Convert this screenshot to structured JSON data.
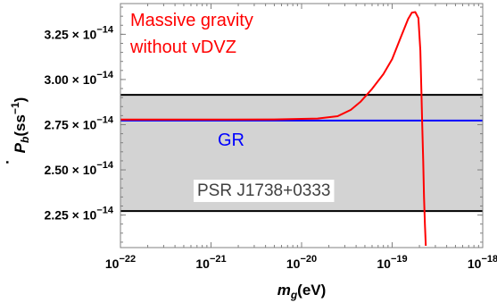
{
  "chart_data": {
    "type": "line",
    "xlabel": {
      "base": "m",
      "sub": "g",
      "rest": "(eV)"
    },
    "ylabel": {
      "base": "P",
      "sub": "b",
      "rest": "(ss",
      "sup": "−1",
      "close": ")"
    },
    "xscale": "log",
    "xlim": [
      1e-22,
      1e-18
    ],
    "ylim": [
      2.07e-14,
      3.42e-14
    ],
    "x_ticks": [
      {
        "value": 1e-22,
        "mant": "10",
        "exp": "−22"
      },
      {
        "value": 1e-21,
        "mant": "10",
        "exp": "−21"
      },
      {
        "value": 1e-20,
        "mant": "10",
        "exp": "−20"
      },
      {
        "value": 1e-19,
        "mant": "10",
        "exp": "−19"
      },
      {
        "value": 1e-18,
        "mant": "10",
        "exp": "−18"
      }
    ],
    "y_ticks": [
      {
        "value": 2.25e-14,
        "mant": "2.25 × 10",
        "exp": "−14"
      },
      {
        "value": 2.5e-14,
        "mant": "2.50 × 10",
        "exp": "−14"
      },
      {
        "value": 2.75e-14,
        "mant": "2.75 × 10",
        "exp": "−14"
      },
      {
        "value": 3e-14,
        "mant": "3.00 × 10",
        "exp": "−14"
      },
      {
        "value": 3.25e-14,
        "mant": "3.25 × 10",
        "exp": "−14"
      }
    ],
    "band": {
      "label": "PSR J1738+0333",
      "ymin": 2.272e-14,
      "ymax": 2.915e-14,
      "fill": "#d3d3d3",
      "edge": "#000000"
    },
    "gr_line": {
      "label": "GR",
      "y": 2.773e-14,
      "color": "#0000ff"
    },
    "series": [
      {
        "label_lines": [
          "Massive gravity",
          "without vDVZ"
        ],
        "color": "#ff0000",
        "points": [
          [
            1e-22,
            2.778e-14
          ],
          [
            1e-21,
            2.778e-14
          ],
          [
            5e-21,
            2.779e-14
          ],
          [
            1.5e-20,
            2.784e-14
          ],
          [
            2.5e-20,
            2.797e-14
          ],
          [
            3.5e-20,
            2.832e-14
          ],
          [
            4.5e-20,
            2.878e-14
          ],
          [
            6e-20,
            2.948e-14
          ],
          [
            8e-20,
            3.03e-14
          ],
          [
            1e-19,
            3.113e-14
          ],
          [
            1.25e-19,
            3.235e-14
          ],
          [
            1.5e-19,
            3.335e-14
          ],
          [
            1.65e-19,
            3.37e-14
          ],
          [
            1.8e-19,
            3.373e-14
          ],
          [
            1.95e-19,
            3.34e-14
          ],
          [
            2.05e-19,
            3.16e-14
          ],
          [
            2.1e-19,
            2.95e-14
          ],
          [
            2.15e-19,
            2.75e-14
          ],
          [
            2.2e-19,
            2.55e-14
          ],
          [
            2.25e-19,
            2.35e-14
          ],
          [
            2.3e-19,
            2.2e-14
          ],
          [
            2.35e-19,
            2.08e-14
          ]
        ]
      }
    ]
  }
}
